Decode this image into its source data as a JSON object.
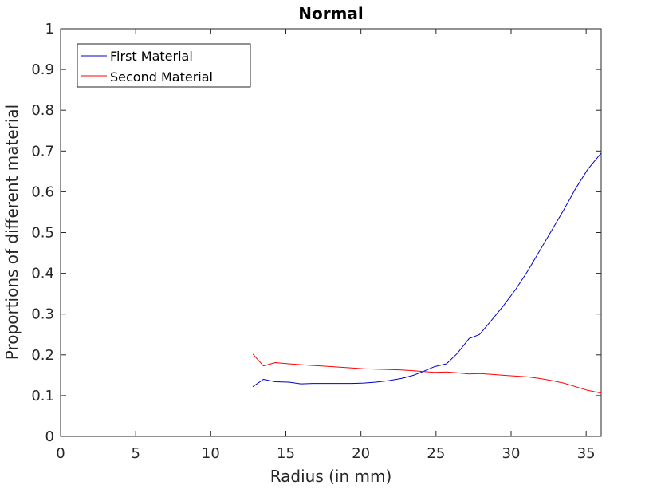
{
  "chart_data": {
    "type": "line",
    "title": "Normal",
    "xlabel": "Radius (in mm)",
    "ylabel": "Proportions of different material",
    "xlim": [
      0,
      36
    ],
    "ylim": [
      0,
      1
    ],
    "xticks": [
      0,
      5,
      10,
      15,
      20,
      25,
      30,
      35
    ],
    "yticks": [
      0,
      0.1,
      0.2,
      0.3,
      0.4,
      0.5,
      0.6,
      0.7,
      0.8,
      0.9,
      1
    ],
    "ytick_labels": [
      "0",
      "0.1",
      "0.2",
      "0.3",
      "0.4",
      "0.5",
      "0.6",
      "0.7",
      "0.8",
      "0.9",
      "1"
    ],
    "grid": false,
    "legend_position": "top-left",
    "series": [
      {
        "name": "First Material",
        "color": "#0000cc",
        "points": [
          [
            12.8,
            0.122
          ],
          [
            13.5,
            0.14
          ],
          [
            14.3,
            0.134
          ],
          [
            15.2,
            0.133
          ],
          [
            16.0,
            0.129
          ],
          [
            16.8,
            0.13
          ],
          [
            17.7,
            0.13
          ],
          [
            18.5,
            0.13
          ],
          [
            19.4,
            0.13
          ],
          [
            20.2,
            0.131
          ],
          [
            21.0,
            0.133
          ],
          [
            21.9,
            0.137
          ],
          [
            22.7,
            0.142
          ],
          [
            23.5,
            0.15
          ],
          [
            24.2,
            0.16
          ],
          [
            24.9,
            0.171
          ],
          [
            25.7,
            0.178
          ],
          [
            26.4,
            0.203
          ],
          [
            27.2,
            0.24
          ],
          [
            27.9,
            0.25
          ],
          [
            28.7,
            0.285
          ],
          [
            29.5,
            0.321
          ],
          [
            30.3,
            0.36
          ],
          [
            31.1,
            0.405
          ],
          [
            31.9,
            0.455
          ],
          [
            32.7,
            0.505
          ],
          [
            33.5,
            0.555
          ],
          [
            34.3,
            0.608
          ],
          [
            35.1,
            0.655
          ],
          [
            36.0,
            0.695
          ]
        ]
      },
      {
        "name": "Second Material",
        "color": "#ff0000",
        "points": [
          [
            12.8,
            0.202
          ],
          [
            13.5,
            0.173
          ],
          [
            14.3,
            0.181
          ],
          [
            15.2,
            0.178
          ],
          [
            16.0,
            0.176
          ],
          [
            16.8,
            0.174
          ],
          [
            17.7,
            0.172
          ],
          [
            18.5,
            0.17
          ],
          [
            19.4,
            0.168
          ],
          [
            20.2,
            0.166
          ],
          [
            21.0,
            0.165
          ],
          [
            21.9,
            0.164
          ],
          [
            22.7,
            0.163
          ],
          [
            23.5,
            0.161
          ],
          [
            24.2,
            0.159
          ],
          [
            24.9,
            0.157
          ],
          [
            25.7,
            0.158
          ],
          [
            26.4,
            0.156
          ],
          [
            27.2,
            0.153
          ],
          [
            27.9,
            0.154
          ],
          [
            28.7,
            0.152
          ],
          [
            29.5,
            0.15
          ],
          [
            30.3,
            0.148
          ],
          [
            31.1,
            0.146
          ],
          [
            31.9,
            0.142
          ],
          [
            32.7,
            0.137
          ],
          [
            33.5,
            0.131
          ],
          [
            34.3,
            0.122
          ],
          [
            35.1,
            0.113
          ],
          [
            36.0,
            0.106
          ]
        ]
      }
    ]
  }
}
